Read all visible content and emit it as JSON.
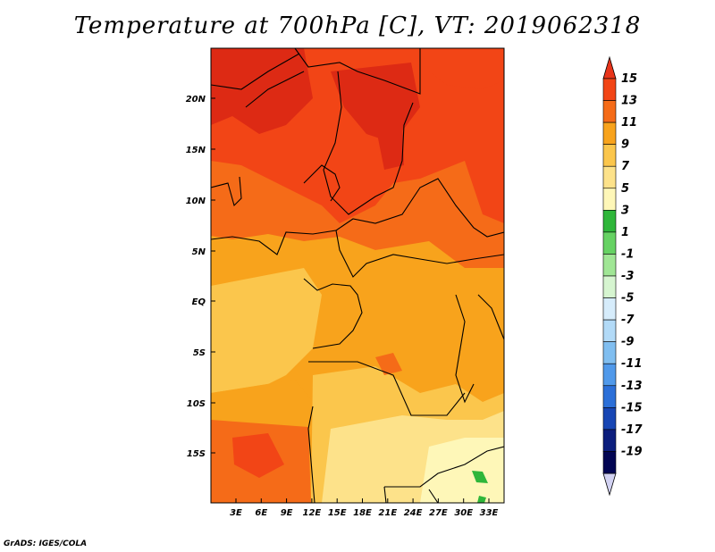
{
  "title": "Temperature at 700hPa [C], VT: 2019062318",
  "credit": "GrADS: IGES/COLA",
  "lat_labels": [
    "20N",
    "15N",
    "10N",
    "5N",
    "EQ",
    "5S",
    "10S",
    "15S"
  ],
  "lon_labels": [
    "3E",
    "6E",
    "9E",
    "12E",
    "15E",
    "18E",
    "21E",
    "24E",
    "27E",
    "30E",
    "33E"
  ],
  "map_extent": {
    "lon": [
      0,
      35
    ],
    "lat": [
      -20,
      24.5
    ],
    "variable": "Temperature at 700hPa",
    "units": "C"
  },
  "colorbar": {
    "labels": [
      "15",
      "13",
      "11",
      "9",
      "7",
      "5",
      "3",
      "1",
      "-1",
      "-3",
      "-5",
      "-7",
      "-9",
      "-11",
      "-13",
      "-15",
      "-17",
      "-19"
    ],
    "colors": [
      "#dd2a14",
      "#f24516",
      "#f56b18",
      "#f8a31c",
      "#fbc64c",
      "#fde28a",
      "#fef7b8",
      "#2fb63a",
      "#66d263",
      "#a0e695",
      "#d6f5d0",
      "#d6ecfb",
      "#b2daf7",
      "#80bef0",
      "#5099ea",
      "#2b6fd8",
      "#1746b4",
      "#0c1e7d",
      "#020553"
    ],
    "top_arrow": "#e8341a",
    "bottom_arrow": "#d2d2f2"
  }
}
